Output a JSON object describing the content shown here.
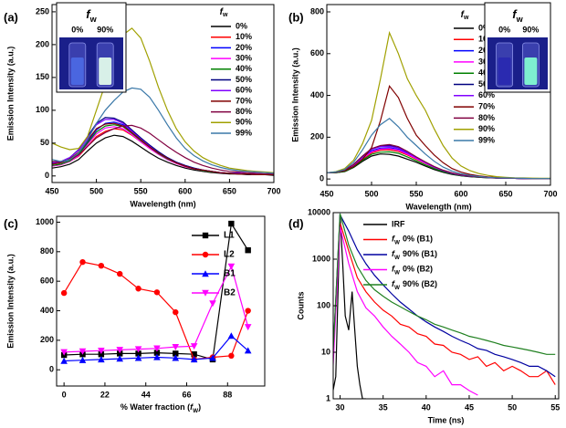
{
  "chart_data": [
    {
      "type": "line",
      "label": "(a)",
      "xlabel": "Wavelength (nm)",
      "ylabel": "Emission Intensity (a.u.)",
      "xlim": [
        450,
        700
      ],
      "ylim": [
        -10,
        261
      ],
      "xticks": [
        450,
        500,
        550,
        600,
        650,
        700
      ],
      "yticks": [
        0,
        50,
        100,
        150,
        200,
        250
      ],
      "legend": "right",
      "legend_title": [
        "f",
        "w"
      ],
      "inset": {
        "symbol": [
          "f",
          "w"
        ],
        "labels": [
          "0%",
          "90%"
        ]
      },
      "x": [
        450,
        460,
        470,
        480,
        490,
        500,
        510,
        520,
        530,
        540,
        550,
        560,
        570,
        580,
        590,
        600,
        610,
        620,
        630,
        640,
        650,
        660,
        670,
        680,
        690,
        700
      ],
      "series": [
        {
          "name": "0%",
          "color": "#000000",
          "values": [
            12,
            14,
            18,
            25,
            38,
            50,
            58,
            62,
            60,
            53,
            44,
            35,
            27,
            21,
            16,
            12,
            9,
            7,
            5,
            4,
            3,
            3,
            2,
            2,
            2,
            1
          ]
        },
        {
          "name": "10%",
          "color": "#ff0000",
          "values": [
            15,
            17,
            22,
            30,
            45,
            60,
            68,
            72,
            70,
            62,
            52,
            42,
            33,
            25,
            19,
            14,
            11,
            8,
            6,
            5,
            4,
            3,
            3,
            2,
            2,
            2
          ]
        },
        {
          "name": "20%",
          "color": "#0000ff",
          "values": [
            18,
            20,
            25,
            35,
            52,
            70,
            80,
            82,
            78,
            68,
            57,
            46,
            36,
            28,
            21,
            16,
            12,
            9,
            7,
            5,
            4,
            4,
            3,
            3,
            2,
            2
          ]
        },
        {
          "name": "30%",
          "color": "#ff00ff",
          "values": [
            15,
            17,
            22,
            31,
            48,
            64,
            73,
            75,
            72,
            63,
            52,
            42,
            33,
            25,
            19,
            14,
            11,
            8,
            6,
            5,
            4,
            3,
            3,
            2,
            2,
            2
          ]
        },
        {
          "name": "40%",
          "color": "#008000",
          "values": [
            16,
            18,
            23,
            33,
            50,
            67,
            76,
            78,
            75,
            65,
            54,
            44,
            34,
            26,
            20,
            15,
            11,
            8,
            6,
            5,
            4,
            3,
            3,
            2,
            2,
            2
          ]
        },
        {
          "name": "50%",
          "color": "#000080",
          "values": [
            20,
            22,
            28,
            40,
            60,
            80,
            89,
            88,
            82,
            70,
            58,
            47,
            37,
            28,
            21,
            16,
            12,
            9,
            7,
            5,
            4,
            4,
            3,
            3,
            2,
            2
          ]
        },
        {
          "name": "60%",
          "color": "#8000ff",
          "values": [
            20,
            22,
            28,
            39,
            58,
            78,
            86,
            86,
            80,
            68,
            56,
            45,
            35,
            27,
            20,
            15,
            11,
            9,
            7,
            5,
            4,
            4,
            3,
            3,
            2,
            2
          ]
        },
        {
          "name": "70%",
          "color": "#800000",
          "values": [
            18,
            20,
            26,
            36,
            54,
            72,
            79,
            80,
            76,
            66,
            55,
            44,
            35,
            27,
            20,
            15,
            11,
            9,
            7,
            5,
            4,
            3,
            3,
            2,
            2,
            2
          ]
        },
        {
          "name": "80%",
          "color": "#800040",
          "values": [
            22,
            22,
            25,
            32,
            45,
            58,
            66,
            72,
            76,
            77,
            73,
            65,
            55,
            45,
            36,
            28,
            21,
            16,
            12,
            9,
            7,
            6,
            5,
            4,
            3,
            3
          ]
        },
        {
          "name": "90%",
          "color": "#a0a000",
          "values": [
            50,
            44,
            40,
            42,
            60,
            100,
            140,
            180,
            215,
            225,
            210,
            175,
            135,
            100,
            72,
            52,
            38,
            28,
            21,
            16,
            12,
            10,
            8,
            7,
            6,
            5
          ]
        },
        {
          "name": "99%",
          "color": "#3a78a8",
          "values": [
            25,
            22,
            25,
            35,
            55,
            80,
            100,
            115,
            128,
            134,
            132,
            120,
            100,
            78,
            58,
            42,
            31,
            23,
            17,
            13,
            10,
            8,
            7,
            6,
            5,
            4
          ]
        }
      ]
    },
    {
      "type": "line",
      "label": "(b)",
      "xlabel": "Wavelength (nm)",
      "ylabel": "Emission Intensity (a.u.)",
      "xlim": [
        450,
        700
      ],
      "ylim": [
        -30,
        835
      ],
      "xticks": [
        450,
        500,
        550,
        600,
        650,
        700
      ],
      "yticks": [
        0,
        200,
        400,
        600,
        800
      ],
      "legend": "right",
      "legend_title": [
        "f",
        "w"
      ],
      "inset": {
        "symbol": [
          "f",
          "w"
        ],
        "labels": [
          "0%",
          "90%"
        ]
      },
      "x": [
        450,
        460,
        470,
        480,
        490,
        500,
        510,
        520,
        530,
        540,
        550,
        560,
        570,
        580,
        590,
        600,
        610,
        620,
        630,
        640,
        650,
        660,
        670,
        680,
        690,
        700
      ],
      "series": [
        {
          "name": "0%",
          "color": "#000000",
          "values": [
            30,
            30,
            35,
            55,
            85,
            110,
            120,
            118,
            110,
            95,
            80,
            62,
            45,
            32,
            22,
            15,
            11,
            8,
            6,
            4,
            3,
            3,
            2,
            2,
            1,
            1
          ]
        },
        {
          "name": "10%",
          "color": "#ff0000",
          "values": [
            30,
            31,
            38,
            60,
            95,
            125,
            138,
            140,
            132,
            115,
            95,
            75,
            55,
            38,
            26,
            18,
            13,
            9,
            7,
            5,
            4,
            3,
            2,
            2,
            2,
            1
          ]
        },
        {
          "name": "20%",
          "color": "#0000ff",
          "values": [
            30,
            32,
            40,
            65,
            100,
            135,
            148,
            150,
            142,
            122,
            100,
            78,
            57,
            40,
            28,
            19,
            13,
            10,
            7,
            5,
            4,
            3,
            2,
            2,
            2,
            1
          ]
        },
        {
          "name": "30%",
          "color": "#ff00ff",
          "values": [
            30,
            31,
            39,
            62,
            98,
            130,
            143,
            145,
            138,
            119,
            98,
            76,
            56,
            39,
            27,
            18,
            13,
            9,
            7,
            5,
            4,
            3,
            2,
            2,
            2,
            1
          ]
        },
        {
          "name": "40%",
          "color": "#008000",
          "values": [
            30,
            30,
            37,
            58,
            90,
            118,
            128,
            130,
            123,
            106,
            87,
            68,
            50,
            35,
            24,
            16,
            12,
            8,
            6,
            5,
            4,
            3,
            2,
            2,
            1,
            1
          ]
        },
        {
          "name": "50%",
          "color": "#000080",
          "values": [
            30,
            33,
            42,
            70,
            110,
            145,
            158,
            160,
            150,
            128,
            104,
            80,
            58,
            41,
            28,
            19,
            14,
            10,
            7,
            5,
            4,
            3,
            2,
            2,
            2,
            1
          ]
        },
        {
          "name": "60%",
          "color": "#8000ff",
          "values": [
            30,
            32,
            41,
            68,
            107,
            142,
            155,
            156,
            148,
            126,
            102,
            79,
            57,
            40,
            27,
            18,
            13,
            10,
            7,
            5,
            4,
            3,
            2,
            2,
            2,
            1
          ]
        },
        {
          "name": "70%",
          "color": "#800000",
          "values": [
            30,
            32,
            40,
            60,
            95,
            150,
            280,
            445,
            390,
            290,
            210,
            160,
            115,
            78,
            50,
            33,
            22,
            15,
            10,
            7,
            5,
            4,
            3,
            2,
            2,
            2
          ]
        },
        {
          "name": "80%",
          "color": "#800040",
          "values": [
            30,
            33,
            42,
            70,
            110,
            145,
            160,
            165,
            155,
            132,
            106,
            82,
            60,
            42,
            29,
            20,
            14,
            10,
            7,
            5,
            4,
            3,
            2,
            2,
            2,
            1
          ]
        },
        {
          "name": "90%",
          "color": "#a0a000",
          "values": [
            30,
            35,
            50,
            90,
            170,
            280,
            480,
            700,
            600,
            480,
            400,
            330,
            240,
            160,
            100,
            62,
            40,
            26,
            17,
            11,
            8,
            6,
            5,
            4,
            3,
            3
          ]
        },
        {
          "name": "99%",
          "color": "#3a78a8",
          "values": [
            30,
            34,
            45,
            80,
            140,
            210,
            260,
            290,
            250,
            200,
            160,
            120,
            85,
            57,
            38,
            25,
            17,
            12,
            8,
            6,
            5,
            4,
            3,
            2,
            2,
            2
          ]
        }
      ]
    },
    {
      "type": "line",
      "label": "(c)",
      "xlabel": [
        "% Water fraction (",
        "f",
        "W",
        ")"
      ],
      "ylabel": "Emission Intensity (a.u.)",
      "xlim": [
        -4,
        108
      ],
      "ylim": [
        -110,
        1040
      ],
      "xticks": [
        0,
        22,
        44,
        66,
        88
      ],
      "yticks": [
        0,
        200,
        400,
        600,
        800,
        1000
      ],
      "legend": "upper right",
      "x": [
        0,
        10,
        20,
        30,
        40,
        50,
        60,
        70,
        80,
        90,
        99
      ],
      "series": [
        {
          "name": "L1",
          "color": "#000000",
          "marker": "square",
          "values": [
            100,
            105,
            105,
            110,
            110,
            115,
            110,
            105,
            70,
            990,
            810
          ]
        },
        {
          "name": "L2",
          "color": "#ff0000",
          "marker": "circle",
          "values": [
            520,
            730,
            705,
            650,
            550,
            525,
            390,
            70,
            85,
            95,
            400
          ]
        },
        {
          "name": "B1",
          "color": "#0000ff",
          "marker": "triangle-up",
          "values": [
            60,
            65,
            70,
            75,
            80,
            85,
            80,
            70,
            80,
            230,
            130
          ]
        },
        {
          "name": "B2",
          "color": "#ff00ff",
          "marker": "triangle-down",
          "values": [
            120,
            125,
            130,
            135,
            140,
            145,
            155,
            160,
            450,
            700,
            290
          ]
        }
      ]
    },
    {
      "type": "line",
      "label": "(d)",
      "xlabel": "Time (ns)",
      "ylabel": "Counts",
      "xlim": [
        29.2,
        55.4
      ],
      "ylim": [
        1,
        10000
      ],
      "log_y": true,
      "xticks": [
        30,
        35,
        40,
        45,
        50,
        55
      ],
      "yticks": [
        1,
        10,
        100,
        1000,
        10000
      ],
      "legend": "upper center",
      "legend_symbol": [
        "f",
        "W"
      ],
      "x": [
        29,
        30,
        31,
        32,
        33,
        34,
        35,
        36,
        37,
        38,
        39,
        40,
        41,
        42,
        43,
        44,
        45,
        46,
        47,
        48,
        49,
        50,
        51,
        52,
        53,
        54,
        55
      ],
      "series": [
        {
          "name": "IRF",
          "color": "#000000",
          "x": [
            29,
            29.5,
            30,
            30.3,
            30.6,
            31,
            31.4,
            31.7,
            32,
            32.3,
            32.6,
            33
          ],
          "values": [
            1,
            3,
            9000,
            800,
            60,
            30,
            200,
            30,
            5,
            2,
            1,
            1
          ]
        },
        {
          "name": "0%  (B1)",
          "symbol": true,
          "color": "#ff0000",
          "values": [
            2,
            6000,
            1500,
            400,
            200,
            120,
            80,
            60,
            40,
            35,
            25,
            22,
            15,
            14,
            10,
            9,
            7,
            8,
            5,
            6,
            4,
            5,
            4,
            3,
            3,
            4,
            2
          ]
        },
        {
          "name": "90%  (B1)",
          "symbol": true,
          "color": "#0000a0",
          "values": [
            2,
            9000,
            4000,
            1600,
            800,
            450,
            280,
            180,
            120,
            85,
            60,
            45,
            35,
            28,
            22,
            18,
            15,
            12,
            11,
            9,
            8,
            7,
            6,
            5,
            5,
            4,
            3
          ]
        },
        {
          "name": "0%  (B2)",
          "symbol": true,
          "color": "#ff00ff",
          "values": [
            1,
            5000,
            800,
            200,
            90,
            60,
            35,
            22,
            15,
            10,
            6,
            5,
            3,
            4,
            2,
            2,
            1.5,
            1.2,
            null,
            null,
            null,
            null,
            null,
            null,
            null,
            null,
            null
          ]
        },
        {
          "name": "90%  (B2)",
          "symbol": true,
          "color": "#208020",
          "values": [
            2,
            9500,
            2000,
            700,
            350,
            220,
            160,
            120,
            95,
            75,
            60,
            50,
            40,
            35,
            30,
            26,
            22,
            20,
            18,
            16,
            14,
            13,
            12,
            11,
            10,
            9,
            9
          ]
        }
      ]
    }
  ]
}
